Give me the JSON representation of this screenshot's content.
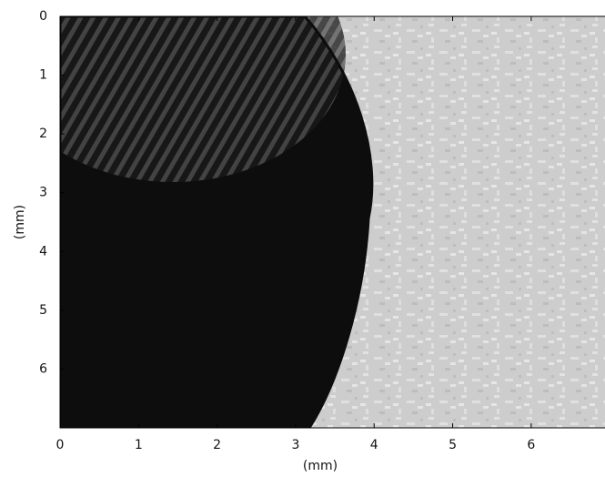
{
  "chart_data": {
    "type": "image",
    "xlabel": "(mm)",
    "ylabel": "(mm)",
    "xlim": [
      0,
      6.94
    ],
    "xticks": [
      0,
      1,
      2,
      3,
      4,
      5,
      6
    ],
    "ylim": [
      0,
      7
    ],
    "yticks": [
      0,
      1,
      2,
      3,
      4,
      5,
      6
    ],
    "y_inverted": true
  }
}
